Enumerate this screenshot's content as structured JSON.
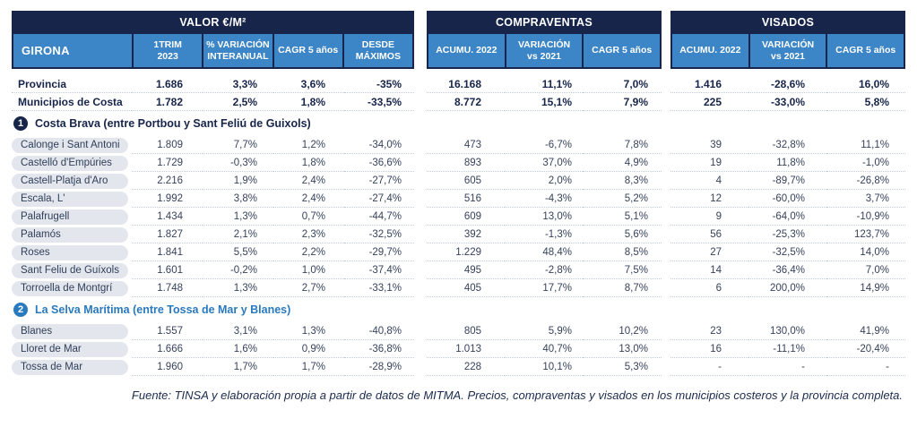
{
  "header": {
    "region_label": "GIRONA",
    "groups": [
      {
        "title": "VALOR €/M²",
        "columns": [
          "1TRIM\n2023",
          "% VARIACIÓN\nINTERANUAL",
          "CAGR 5 años",
          "DESDE\nMÁXIMOS"
        ]
      },
      {
        "title": "COMPRAVENTAS",
        "columns": [
          "ACUMU. 2022",
          "VARIACIÓN\nvs 2021",
          "CAGR 5 años"
        ]
      },
      {
        "title": "VISADOS",
        "columns": [
          "ACUMU. 2022",
          "VARIACIÓN\nvs 2021",
          "CAGR 5 años"
        ]
      }
    ]
  },
  "rows": [
    {
      "type": "summary",
      "label": "Provincia",
      "valor": [
        "1.686",
        "3,3%",
        "3,6%",
        "-35%"
      ],
      "compraventas": [
        "16.168",
        "11,1%",
        "7,0%"
      ],
      "visados": [
        "1.416",
        "-28,6%",
        "16,0%"
      ]
    },
    {
      "type": "summary",
      "label": "Municipios de Costa",
      "valor": [
        "1.782",
        "2,5%",
        "1,8%",
        "-33,5%"
      ],
      "compraventas": [
        "8.772",
        "15,1%",
        "7,9%"
      ],
      "visados": [
        "225",
        "-33,0%",
        "5,8%"
      ]
    },
    {
      "type": "section",
      "number": "1",
      "accent": "navy",
      "title": "Costa Brava (entre Portbou y Sant Feliú de Guixols)"
    },
    {
      "type": "muni",
      "label": "Calonge i Sant Antoni",
      "valor": [
        "1.809",
        "7,7%",
        "1,2%",
        "-34,0%"
      ],
      "compraventas": [
        "473",
        "-6,7%",
        "7,8%"
      ],
      "visados": [
        "39",
        "-32,8%",
        "11,1%"
      ]
    },
    {
      "type": "muni",
      "label": "Castelló d'Empúries",
      "valor": [
        "1.729",
        "-0,3%",
        "1,8%",
        "-36,6%"
      ],
      "compraventas": [
        "893",
        "37,0%",
        "4,9%"
      ],
      "visados": [
        "19",
        "11,8%",
        "-1,0%"
      ]
    },
    {
      "type": "muni",
      "label": "Castell-Platja d'Aro",
      "valor": [
        "2.216",
        "1,9%",
        "2,4%",
        "-27,7%"
      ],
      "compraventas": [
        "605",
        "2,0%",
        "8,3%"
      ],
      "visados": [
        "4",
        "-89,7%",
        "-26,8%"
      ]
    },
    {
      "type": "muni",
      "label": "Escala, L'",
      "valor": [
        "1.992",
        "3,8%",
        "2,4%",
        "-27,4%"
      ],
      "compraventas": [
        "516",
        "-4,3%",
        "5,2%"
      ],
      "visados": [
        "12",
        "-60,0%",
        "3,7%"
      ]
    },
    {
      "type": "muni",
      "label": "Palafrugell",
      "valor": [
        "1.434",
        "1,3%",
        "0,7%",
        "-44,7%"
      ],
      "compraventas": [
        "609",
        "13,0%",
        "5,1%"
      ],
      "visados": [
        "9",
        "-64,0%",
        "-10,9%"
      ]
    },
    {
      "type": "muni",
      "label": "Palamós",
      "valor": [
        "1.827",
        "2,1%",
        "2,3%",
        "-32,5%"
      ],
      "compraventas": [
        "392",
        "-1,3%",
        "5,6%"
      ],
      "visados": [
        "56",
        "-25,3%",
        "123,7%"
      ]
    },
    {
      "type": "muni",
      "label": "Roses",
      "valor": [
        "1.841",
        "5,5%",
        "2,2%",
        "-29,7%"
      ],
      "compraventas": [
        "1.229",
        "48,4%",
        "8,5%"
      ],
      "visados": [
        "27",
        "-32,5%",
        "14,0%"
      ]
    },
    {
      "type": "muni",
      "label": "Sant Feliu de Guíxols",
      "valor": [
        "1.601",
        "-0,2%",
        "1,0%",
        "-37,4%"
      ],
      "compraventas": [
        "495",
        "-2,8%",
        "7,5%"
      ],
      "visados": [
        "14",
        "-36,4%",
        "7,0%"
      ]
    },
    {
      "type": "muni",
      "label": "Torroella de Montgrí",
      "valor": [
        "1.748",
        "1,3%",
        "2,7%",
        "-33,1%"
      ],
      "compraventas": [
        "405",
        "17,7%",
        "8,7%"
      ],
      "visados": [
        "6",
        "200,0%",
        "14,9%"
      ]
    },
    {
      "type": "section",
      "number": "2",
      "accent": "blue",
      "title": "La Selva Marítima (entre Tossa de Mar y Blanes)"
    },
    {
      "type": "muni",
      "label": "Blanes",
      "valor": [
        "1.557",
        "3,1%",
        "1,3%",
        "-40,8%"
      ],
      "compraventas": [
        "805",
        "5,9%",
        "10,2%"
      ],
      "visados": [
        "23",
        "130,0%",
        "41,9%"
      ]
    },
    {
      "type": "muni",
      "label": "Lloret de Mar",
      "valor": [
        "1.666",
        "1,6%",
        "0,9%",
        "-36,8%"
      ],
      "compraventas": [
        "1.013",
        "40,7%",
        "13,0%"
      ],
      "visados": [
        "16",
        "-11,1%",
        "-20,4%"
      ]
    },
    {
      "type": "muni",
      "label": "Tossa de Mar",
      "valor": [
        "1.960",
        "1,7%",
        "1,7%",
        "-28,9%"
      ],
      "compraventas": [
        "228",
        "10,1%",
        "5,3%"
      ],
      "visados": [
        "-",
        "-",
        "-"
      ]
    }
  ],
  "footer": "Fuente: TINSA y elaboración propia a partir de datos de MITMA. Precios, compraventas y visados en los municipios costeros y la provincia completa.",
  "colors": {
    "navy": "#17254b",
    "header_blue": "#3c85c6",
    "accent_blue": "#2979bf",
    "pill_bg": "#e3e7ed",
    "dotted_line": "#c2ccd9"
  }
}
